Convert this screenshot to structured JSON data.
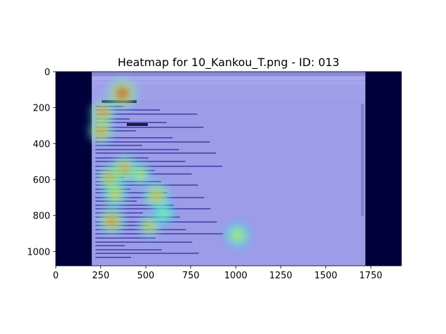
{
  "chart_data": {
    "type": "heatmap",
    "title": "Heatmap for 10_Kankou_T.png - ID: 013",
    "xlabel": "",
    "ylabel": "",
    "xlim": [
      0,
      1920
    ],
    "ylim": [
      1080,
      0
    ],
    "x_ticks": [
      0,
      250,
      500,
      750,
      1000,
      1250,
      1500,
      1750
    ],
    "y_ticks": [
      0,
      200,
      400,
      600,
      800,
      1000
    ],
    "background_image": "email client window screenshot (Mozilla Thunderbird) with Japanese text",
    "screen_region_x": [
      200,
      1720
    ],
    "hotspots": [
      {
        "x": 370,
        "y": 120,
        "intensity": 0.95,
        "radius": 85
      },
      {
        "x": 260,
        "y": 230,
        "intensity": 0.85,
        "radius": 70
      },
      {
        "x": 250,
        "y": 330,
        "intensity": 0.8,
        "radius": 70
      },
      {
        "x": 380,
        "y": 540,
        "intensity": 0.75,
        "radius": 75
      },
      {
        "x": 300,
        "y": 590,
        "intensity": 0.75,
        "radius": 70
      },
      {
        "x": 470,
        "y": 570,
        "intensity": 0.6,
        "radius": 60
      },
      {
        "x": 560,
        "y": 690,
        "intensity": 0.7,
        "radius": 75
      },
      {
        "x": 330,
        "y": 680,
        "intensity": 0.65,
        "radius": 70
      },
      {
        "x": 310,
        "y": 830,
        "intensity": 0.8,
        "radius": 75
      },
      {
        "x": 520,
        "y": 860,
        "intensity": 0.7,
        "radius": 60
      },
      {
        "x": 600,
        "y": 790,
        "intensity": 0.45,
        "radius": 60
      },
      {
        "x": 1010,
        "y": 910,
        "intensity": 0.55,
        "radius": 70
      }
    ],
    "colormap": "jet"
  }
}
